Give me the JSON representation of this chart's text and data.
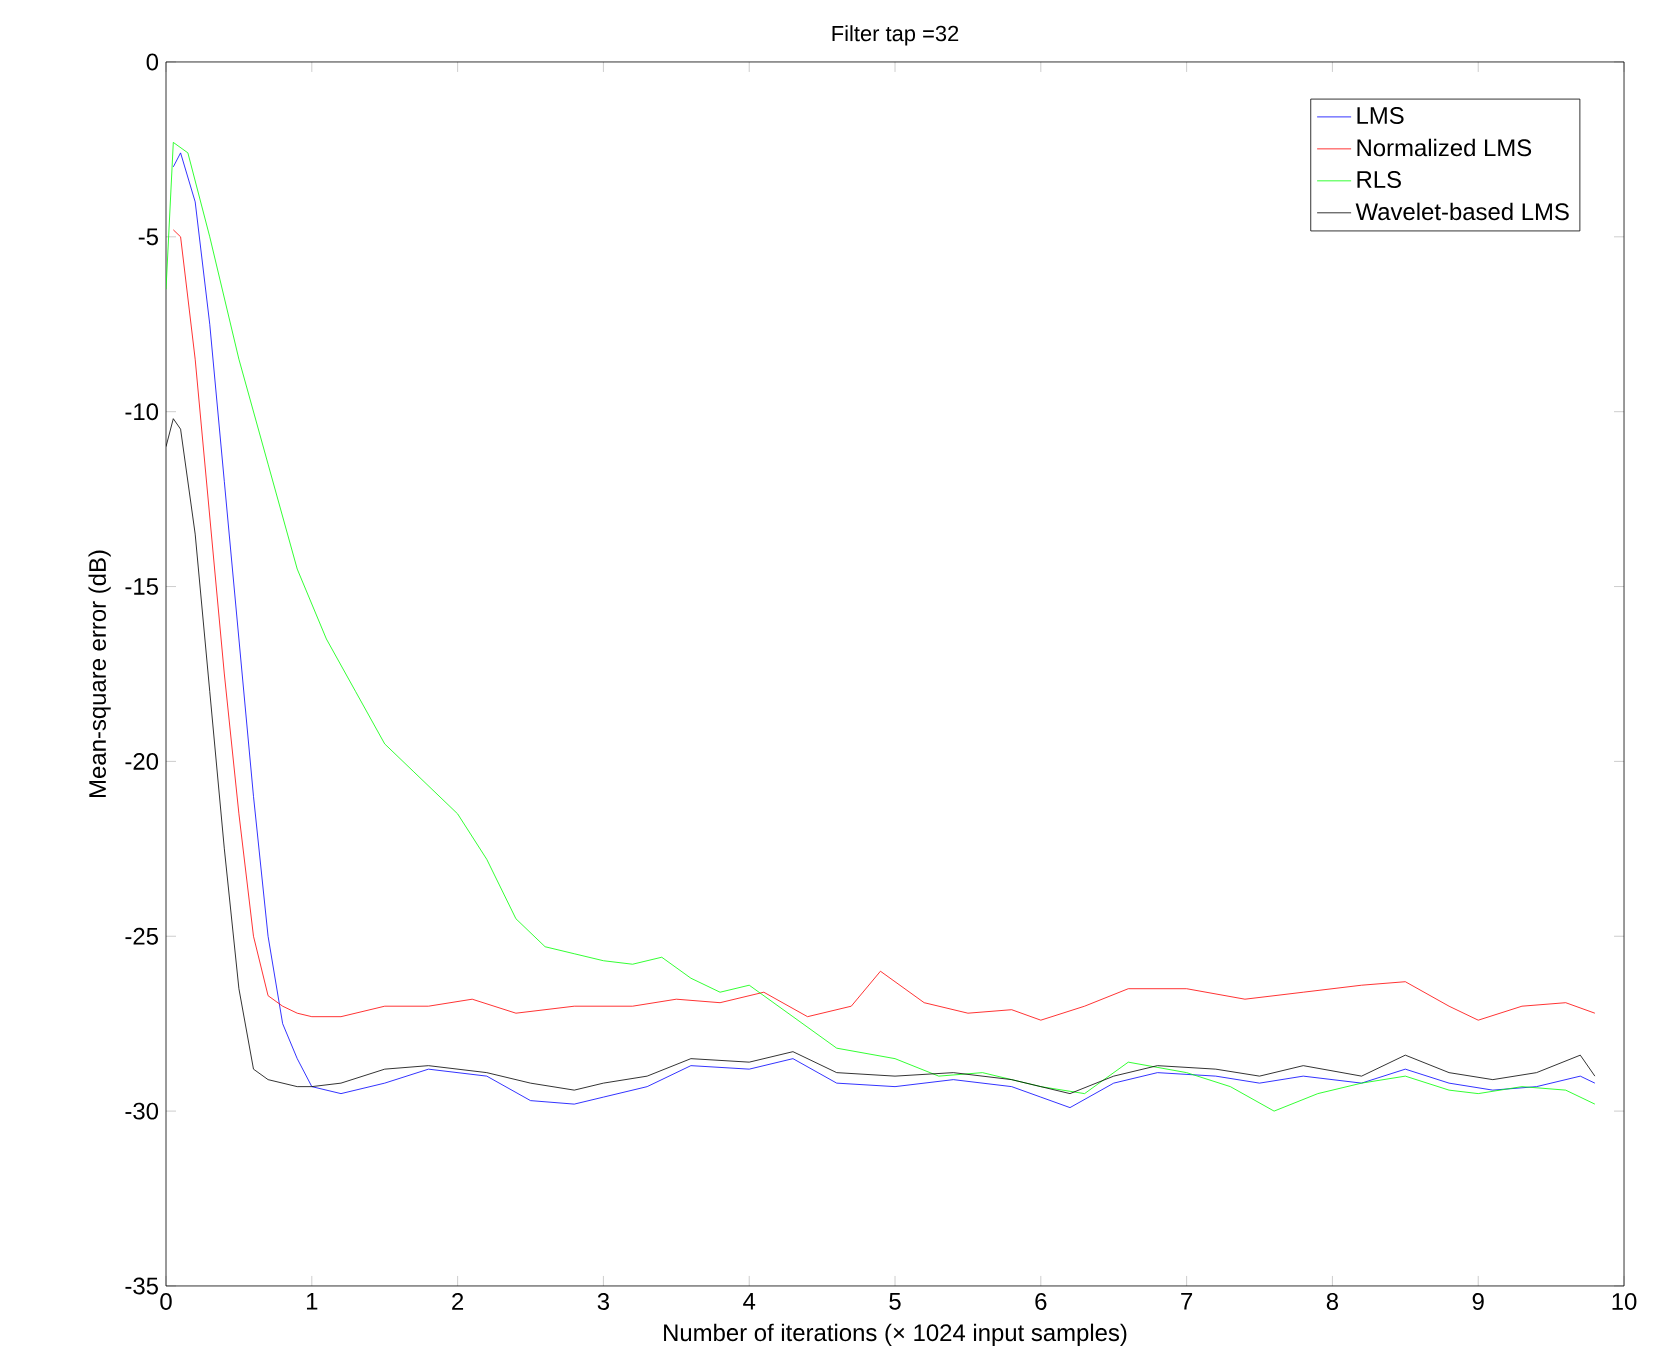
{
  "chart_data": {
    "type": "line",
    "title": "Filter tap =32",
    "xlabel": "Number of iterations (× 1024 input samples)",
    "ylabel": "Mean-square error (dB)",
    "xlim": [
      0,
      10
    ],
    "ylim": [
      -35,
      0
    ],
    "xticks": [
      0,
      1,
      2,
      3,
      4,
      5,
      6,
      7,
      8,
      9,
      10
    ],
    "yticks": [
      -35,
      -30,
      -25,
      -20,
      -15,
      -10,
      -5,
      0
    ],
    "legend": "top right",
    "marker": "none",
    "line_style": "solid",
    "series": [
      {
        "name": "LMS",
        "color": "#0000ff",
        "x": [
          0.05,
          0.1,
          0.2,
          0.3,
          0.4,
          0.5,
          0.6,
          0.7,
          0.8,
          0.9,
          1.0,
          1.2,
          1.5,
          1.8,
          2.2,
          2.5,
          2.8,
          3.0,
          3.3,
          3.6,
          4.0,
          4.3,
          4.6,
          5.0,
          5.4,
          5.8,
          6.0,
          6.2,
          6.5,
          6.8,
          7.2,
          7.5,
          7.8,
          8.2,
          8.5,
          8.8,
          9.1,
          9.4,
          9.7,
          9.8
        ],
        "values": [
          -3,
          -2.6,
          -4,
          -7.5,
          -12,
          -16.5,
          -21,
          -25,
          -27.5,
          -28.5,
          -29.3,
          -29.5,
          -29.2,
          -28.8,
          -29.0,
          -29.7,
          -29.8,
          -29.6,
          -29.3,
          -28.7,
          -28.8,
          -28.5,
          -29.2,
          -29.3,
          -29.1,
          -29.3,
          -29.6,
          -29.9,
          -29.2,
          -28.9,
          -29.0,
          -29.2,
          -29.0,
          -29.2,
          -28.8,
          -29.2,
          -29.4,
          -29.3,
          -29.0,
          -29.2
        ]
      },
      {
        "name": "Normalized LMS",
        "color": "#ff0000",
        "x": [
          0.05,
          0.1,
          0.2,
          0.3,
          0.4,
          0.5,
          0.6,
          0.7,
          0.8,
          0.9,
          1.0,
          1.2,
          1.5,
          1.8,
          2.1,
          2.4,
          2.8,
          3.2,
          3.5,
          3.8,
          4.1,
          4.4,
          4.7,
          4.9,
          5.2,
          5.5,
          5.8,
          6.0,
          6.3,
          6.6,
          7.0,
          7.4,
          7.8,
          8.2,
          8.5,
          8.8,
          9.0,
          9.3,
          9.6,
          9.8
        ],
        "values": [
          -4.8,
          -5,
          -8.5,
          -13,
          -17.5,
          -21.5,
          -25,
          -26.7,
          -27,
          -27.2,
          -27.3,
          -27.3,
          -27.0,
          -27.0,
          -26.8,
          -27.2,
          -27.0,
          -27.0,
          -26.8,
          -26.9,
          -26.6,
          -27.3,
          -27.0,
          -26.0,
          -26.9,
          -27.2,
          -27.1,
          -27.4,
          -27.0,
          -26.5,
          -26.5,
          -26.8,
          -26.6,
          -26.4,
          -26.3,
          -27.0,
          -27.4,
          -27.0,
          -26.9,
          -27.2
        ]
      },
      {
        "name": "RLS",
        "color": "#00ff00",
        "x": [
          0,
          0.05,
          0.15,
          0.3,
          0.5,
          0.7,
          0.9,
          1.1,
          1.3,
          1.5,
          1.7,
          2.0,
          2.2,
          2.4,
          2.6,
          2.8,
          3.0,
          3.2,
          3.4,
          3.6,
          3.8,
          4.0,
          4.3,
          4.6,
          5.0,
          5.3,
          5.6,
          6.0,
          6.3,
          6.6,
          7.0,
          7.3,
          7.6,
          7.9,
          8.2,
          8.5,
          8.8,
          9.0,
          9.3,
          9.6,
          9.8
        ],
        "values": [
          -6.5,
          -2.3,
          -2.6,
          -5,
          -8.5,
          -11.5,
          -14.5,
          -16.5,
          -18,
          -19.5,
          -20.3,
          -21.5,
          -22.8,
          -24.5,
          -25.3,
          -25.5,
          -25.7,
          -25.8,
          -25.6,
          -26.2,
          -26.6,
          -26.4,
          -27.3,
          -28.2,
          -28.5,
          -29.0,
          -28.9,
          -29.3,
          -29.5,
          -28.6,
          -28.9,
          -29.3,
          -30.0,
          -29.5,
          -29.2,
          -29.0,
          -29.4,
          -29.5,
          -29.3,
          -29.4,
          -29.8
        ]
      },
      {
        "name": "Wavelet-based LMS",
        "color": "#000000",
        "x": [
          0,
          0.05,
          0.1,
          0.2,
          0.3,
          0.4,
          0.5,
          0.6,
          0.7,
          0.9,
          1.0,
          1.2,
          1.5,
          1.8,
          2.2,
          2.5,
          2.8,
          3.0,
          3.3,
          3.6,
          4.0,
          4.3,
          4.6,
          5.0,
          5.4,
          5.8,
          6.0,
          6.2,
          6.5,
          6.8,
          7.2,
          7.5,
          7.8,
          8.2,
          8.5,
          8.8,
          9.1,
          9.4,
          9.7,
          9.8
        ],
        "values": [
          -11,
          -10.2,
          -10.5,
          -13.5,
          -18,
          -22.5,
          -26.5,
          -28.8,
          -29.1,
          -29.3,
          -29.3,
          -29.2,
          -28.8,
          -28.7,
          -28.9,
          -29.2,
          -29.4,
          -29.2,
          -29.0,
          -28.5,
          -28.6,
          -28.3,
          -28.9,
          -29.0,
          -28.9,
          -29.1,
          -29.3,
          -29.5,
          -29.0,
          -28.7,
          -28.8,
          -29.0,
          -28.7,
          -29.0,
          -28.4,
          -28.9,
          -29.1,
          -28.9,
          -28.4,
          -29.0
        ]
      }
    ]
  }
}
